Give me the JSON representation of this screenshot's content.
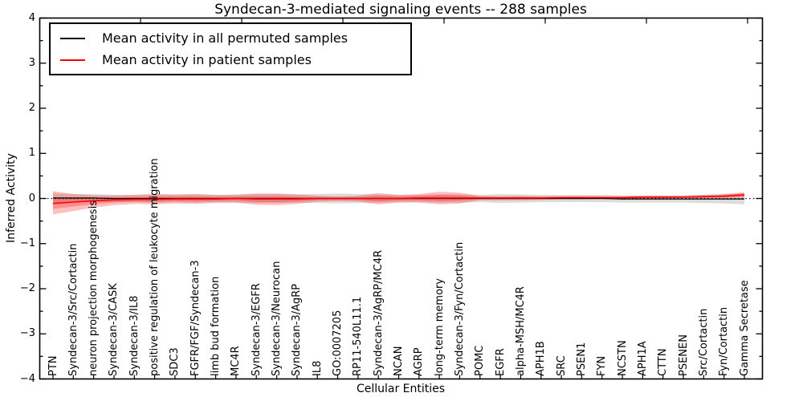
{
  "chart_data": {
    "type": "line",
    "title": "Syndecan-3-mediated signaling events -- 288 samples",
    "xlabel": "Cellular Entities",
    "ylabel": "Inferred Activity",
    "ylim": [
      -4,
      4
    ],
    "ytick_labels": [
      "4",
      "3",
      "2",
      "1",
      "0",
      "−1",
      "−2",
      "−3",
      "−4"
    ],
    "ytick_values": [
      4,
      3,
      2,
      1,
      0,
      -1,
      -2,
      -3,
      -4
    ],
    "grid": false,
    "legend_position": "upper left",
    "zero_line": {
      "y": 0,
      "style": "dotted",
      "color": "#000000"
    },
    "categories": [
      "PTN",
      "Syndecan-3/Src/Cortactin",
      "neuron projection morphogenesis",
      "Syndecan-3/CASK",
      "Syndecan-3/IL8",
      "positive regulation of leukocyte migration",
      "SDC3",
      "FGFR/FGF/Syndecan-3",
      "limb bud formation",
      "MC4R",
      "Syndecan-3/EGFR",
      "Syndecan-3/Neurocan",
      "Syndecan-3/AgRP",
      "IL8",
      "GO:0007205",
      "RP11-540L11.1",
      "Syndecan-3/AgRP/MC4R",
      "NCAN",
      "AGRP",
      "long-term memory",
      "Syndecan-3/Fyn/Cortactin",
      "POMC",
      "EGFR",
      "alpha-MSH/MC4R",
      "APH1B",
      "SRC",
      "PSEN1",
      "FYN",
      "NCSTN",
      "APH1A",
      "CTTN",
      "PSENEN",
      "Src/Cortactin",
      "Fyn/Cortactin",
      "Gamma Secretase"
    ],
    "series": [
      {
        "name": "Mean activity in all permuted samples",
        "color": "#000000",
        "band_color": "rgba(128,128,128,0.28)",
        "values": [
          0.01,
          0.01,
          0.01,
          0.0,
          0.0,
          0.0,
          0.0,
          0.0,
          0.0,
          0.0,
          0.0,
          0.0,
          0.0,
          0.0,
          0.0,
          0.0,
          0.0,
          0.0,
          0.0,
          0.0,
          0.0,
          0.0,
          0.0,
          0.0,
          0.0,
          0.0,
          0.0,
          0.0,
          -0.01,
          -0.01,
          -0.01,
          -0.01,
          -0.01,
          -0.01,
          -0.01
        ],
        "band_halfwidth": [
          0.1,
          0.09,
          0.09,
          0.08,
          0.08,
          0.09,
          0.08,
          0.09,
          0.08,
          0.09,
          0.1,
          0.1,
          0.09,
          0.1,
          0.11,
          0.1,
          0.09,
          0.08,
          0.08,
          0.09,
          0.09,
          0.08,
          0.1,
          0.09,
          0.08,
          0.08,
          0.08,
          0.08,
          0.08,
          0.08,
          0.08,
          0.08,
          0.09,
          0.1,
          0.12
        ]
      },
      {
        "name": "Mean activity in patient samples",
        "color": "#ff0000",
        "band_color": "rgba(255,0,0,0.25)",
        "values": [
          -0.11,
          -0.08,
          -0.05,
          -0.03,
          -0.02,
          -0.02,
          -0.01,
          -0.01,
          -0.01,
          0.0,
          -0.01,
          -0.01,
          -0.01,
          0.0,
          0.0,
          0.0,
          0.0,
          0.0,
          0.01,
          0.01,
          0.01,
          0.01,
          0.01,
          0.01,
          0.01,
          0.02,
          0.02,
          0.02,
          0.02,
          0.03,
          0.03,
          0.03,
          0.04,
          0.05,
          0.08
        ],
        "band_upper": [
          0.16,
          0.1,
          0.07,
          0.07,
          0.08,
          0.1,
          0.09,
          0.1,
          0.08,
          0.08,
          0.11,
          0.11,
          0.09,
          0.06,
          0.05,
          0.06,
          0.12,
          0.08,
          0.1,
          0.15,
          0.13,
          0.06,
          0.05,
          0.06,
          0.05,
          0.05,
          0.05,
          0.05,
          0.05,
          0.06,
          0.06,
          0.06,
          0.08,
          0.1,
          0.14
        ],
        "band_lower": [
          -0.35,
          -0.28,
          -0.2,
          -0.15,
          -0.12,
          -0.13,
          -0.11,
          -0.12,
          -0.1,
          -0.09,
          -0.14,
          -0.15,
          -0.12,
          -0.07,
          -0.06,
          -0.07,
          -0.13,
          -0.09,
          -0.09,
          -0.13,
          -0.11,
          -0.04,
          -0.04,
          -0.04,
          -0.03,
          -0.02,
          -0.02,
          -0.01,
          -0.01,
          0.0,
          0.0,
          0.01,
          0.01,
          0.01,
          0.02
        ]
      }
    ]
  }
}
